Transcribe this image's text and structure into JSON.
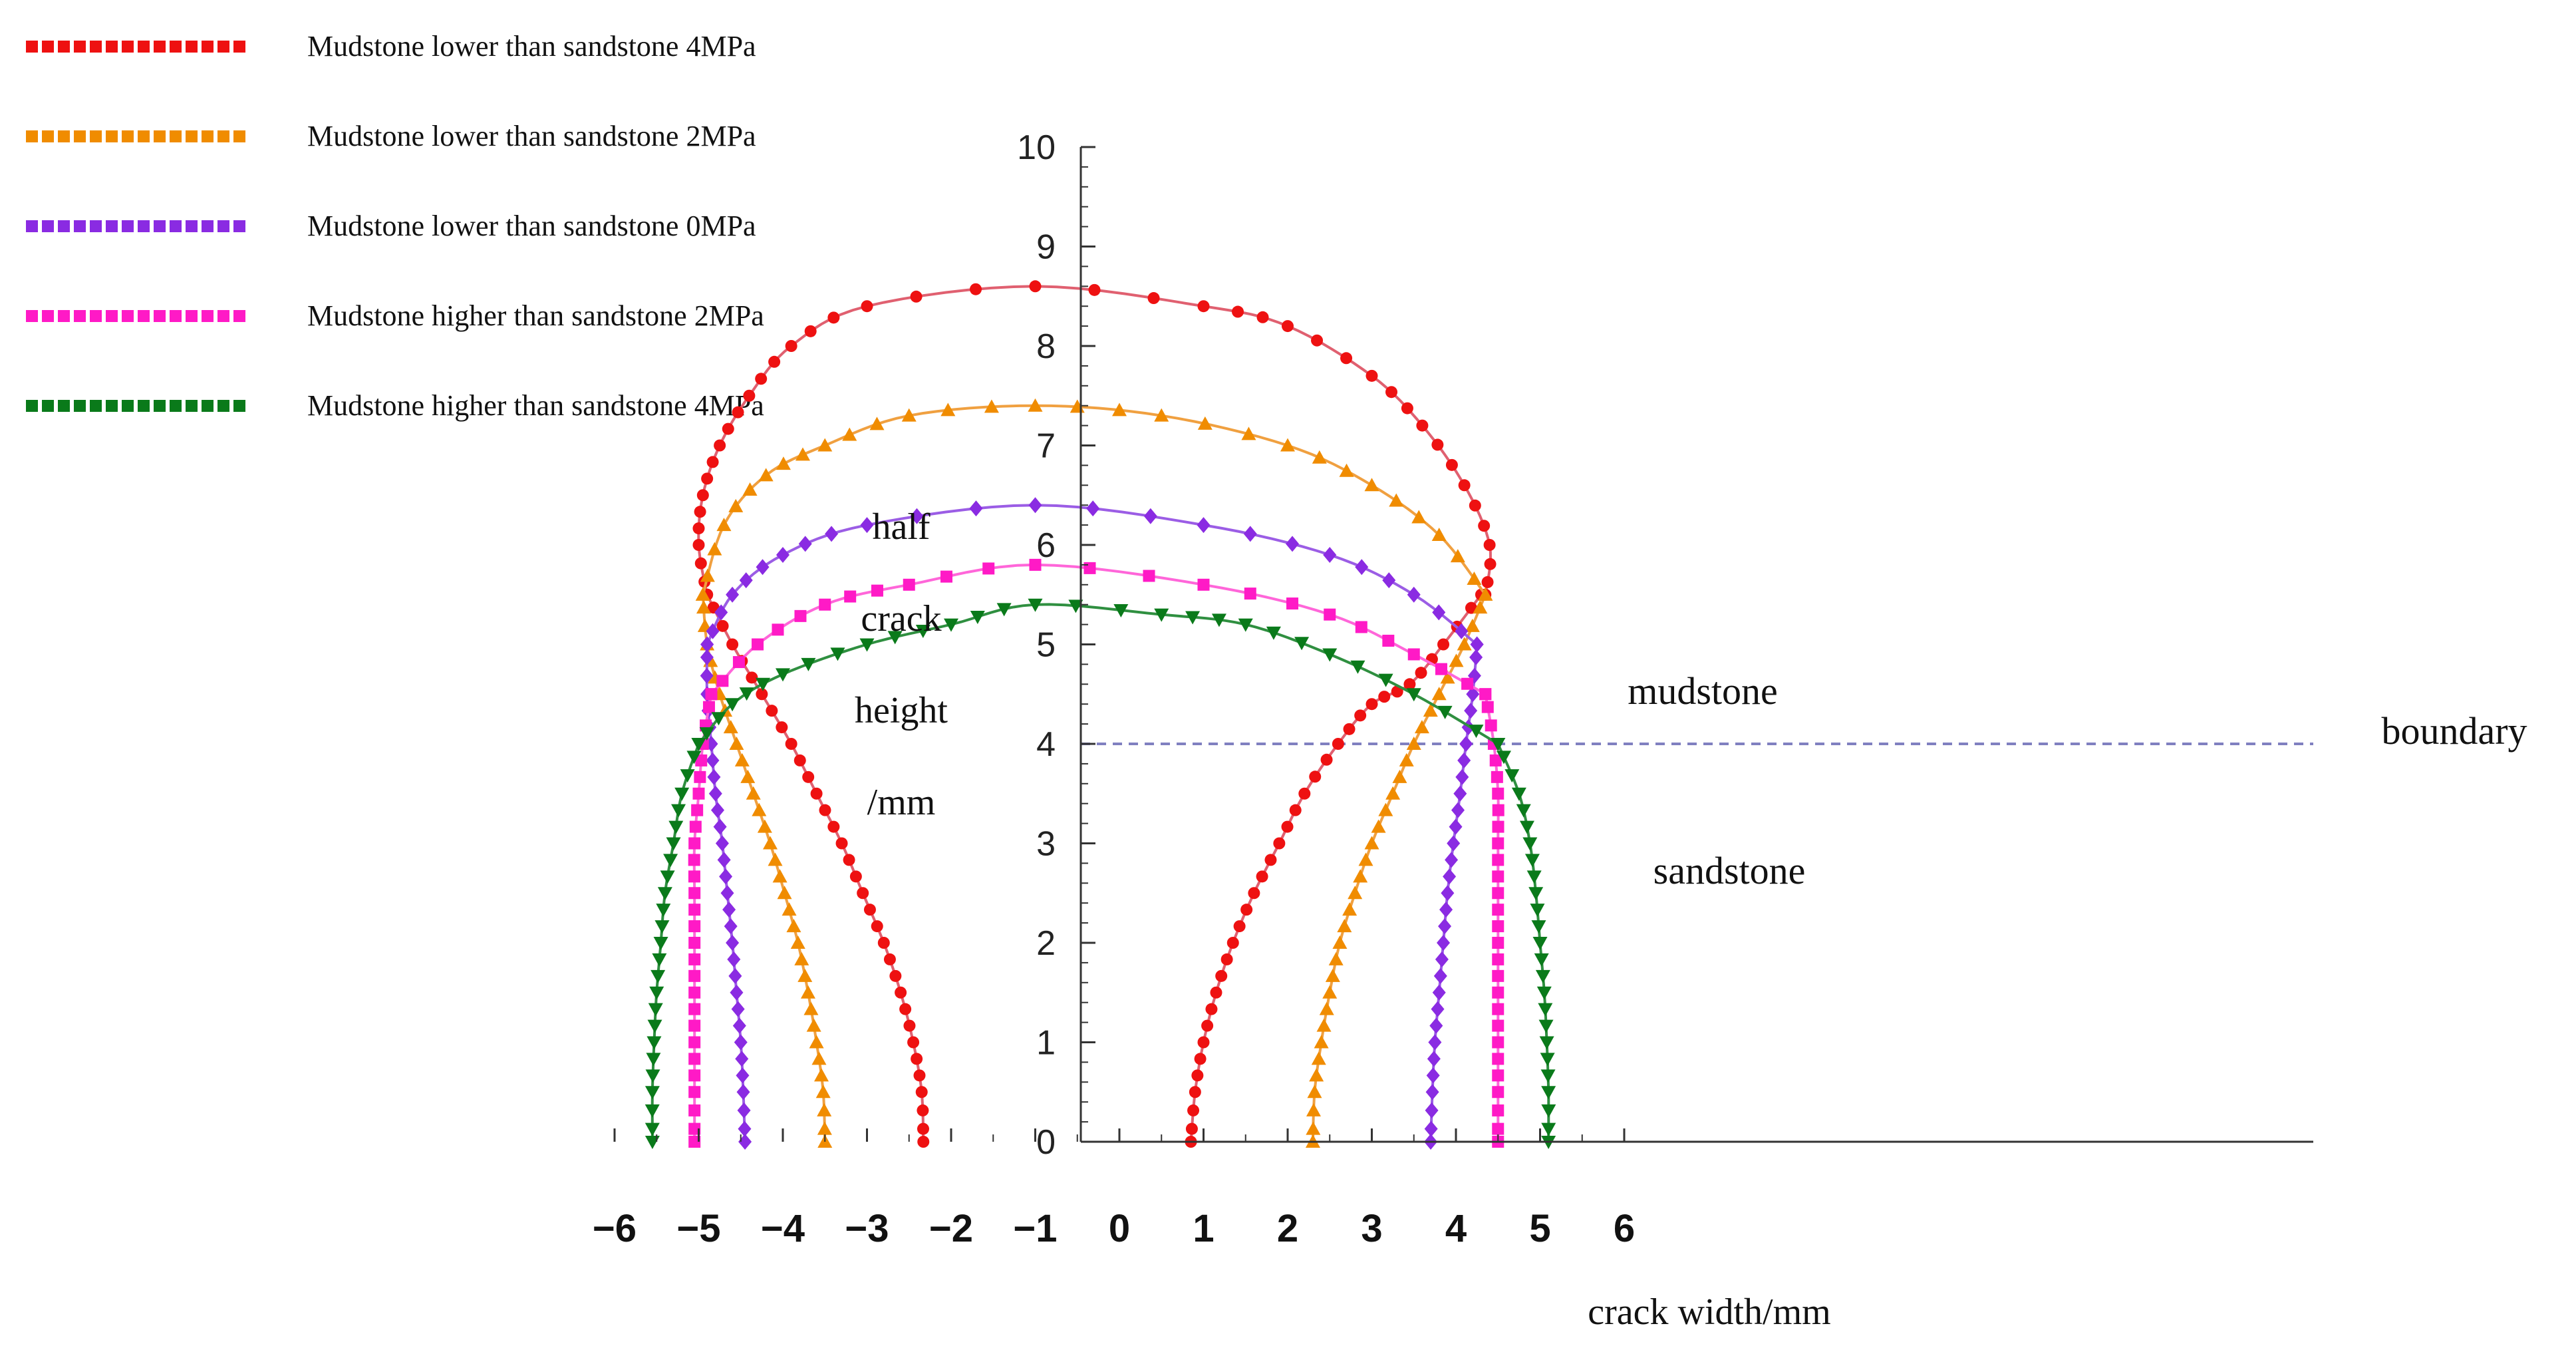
{
  "chart_data": {
    "type": "line",
    "title": "",
    "xlabel": "crack width/mm",
    "ylabel_lines": [
      "half",
      "crack",
      "height",
      "/mm"
    ],
    "xlim": [
      -6,
      6
    ],
    "ylim": [
      0,
      10
    ],
    "x_ticks": [
      "−6",
      "−5",
      "−4",
      "−3",
      "−2",
      "−1",
      "0",
      "1",
      "2",
      "3",
      "4",
      "5",
      "6"
    ],
    "x_tick_values": [
      -6,
      -5,
      -4,
      -3,
      -2,
      -1,
      0,
      1,
      2,
      3,
      4,
      5,
      6
    ],
    "y_ticks": [
      "0",
      "1",
      "2",
      "3",
      "4",
      "5",
      "6",
      "7",
      "8",
      "9",
      "10"
    ],
    "y_tick_values": [
      0,
      1,
      2,
      3,
      4,
      5,
      6,
      7,
      8,
      9,
      10
    ],
    "legend_placement": "top-left",
    "annotations": {
      "mudstone": "mudstone",
      "sandstone": "sandstone",
      "boundary": "boundary"
    },
    "boundary": {
      "y": 4,
      "color": "#8080c0"
    },
    "series": [
      {
        "name": "Mudstone lower than sandstone 4MPa",
        "color": "#ee1111",
        "line_color": "#e06070",
        "marker": "circle",
        "left_sand": [
          [
            -2.33,
            0
          ],
          [
            -2.35,
            0.5
          ],
          [
            -2.45,
            1.0
          ],
          [
            -2.6,
            1.5
          ],
          [
            -2.8,
            2.0
          ],
          [
            -3.05,
            2.5
          ],
          [
            -3.3,
            3.0
          ],
          [
            -3.6,
            3.5
          ],
          [
            -3.9,
            4.0
          ],
          [
            -4.25,
            4.5
          ],
          [
            -4.6,
            5.0
          ],
          [
            -4.9,
            5.5
          ]
        ],
        "right_sand": [
          [
            0.85,
            0
          ],
          [
            0.9,
            0.5
          ],
          [
            1.0,
            1.0
          ],
          [
            1.15,
            1.5
          ],
          [
            1.35,
            2.0
          ],
          [
            1.6,
            2.5
          ],
          [
            1.9,
            3.0
          ],
          [
            2.2,
            3.5
          ],
          [
            2.6,
            4.0
          ],
          [
            3.0,
            4.4
          ],
          [
            3.45,
            4.6
          ],
          [
            3.85,
            5.0
          ],
          [
            4.3,
            5.5
          ]
        ],
        "mud": [
          [
            -4.9,
            5.5
          ],
          [
            -5.0,
            6.0
          ],
          [
            -4.95,
            6.5
          ],
          [
            -4.75,
            7.0
          ],
          [
            -4.4,
            7.5
          ],
          [
            -3.9,
            8.0
          ],
          [
            -3.0,
            8.4
          ],
          [
            -1.0,
            8.6
          ],
          [
            1.0,
            8.4
          ],
          [
            2.0,
            8.2
          ],
          [
            3.0,
            7.7
          ],
          [
            3.6,
            7.2
          ],
          [
            4.1,
            6.6
          ],
          [
            4.4,
            6.0
          ],
          [
            4.35,
            5.5
          ]
        ]
      },
      {
        "name": "Mudstone lower than sandstone 2MPa",
        "color": "#f08c00",
        "line_color": "#f0a040",
        "marker": "triangle-up",
        "left_sand": [
          [
            -3.5,
            0
          ],
          [
            -3.52,
            0.5
          ],
          [
            -3.6,
            1.0
          ],
          [
            -3.7,
            1.5
          ],
          [
            -3.82,
            2.0
          ],
          [
            -3.98,
            2.5
          ],
          [
            -4.15,
            3.0
          ],
          [
            -4.35,
            3.5
          ],
          [
            -4.55,
            4.0
          ],
          [
            -4.75,
            4.5
          ],
          [
            -4.9,
            5.0
          ],
          [
            -4.95,
            5.5
          ]
        ],
        "right_sand": [
          [
            2.3,
            0
          ],
          [
            2.32,
            0.5
          ],
          [
            2.4,
            1.0
          ],
          [
            2.5,
            1.5
          ],
          [
            2.62,
            2.0
          ],
          [
            2.8,
            2.5
          ],
          [
            3.0,
            3.0
          ],
          [
            3.25,
            3.5
          ],
          [
            3.5,
            4.0
          ],
          [
            3.8,
            4.5
          ],
          [
            4.1,
            5.0
          ],
          [
            4.35,
            5.5
          ]
        ],
        "mud": [
          [
            -4.95,
            5.5
          ],
          [
            -4.7,
            6.2
          ],
          [
            -4.2,
            6.7
          ],
          [
            -3.5,
            7.0
          ],
          [
            -2.5,
            7.3
          ],
          [
            -1.0,
            7.4
          ],
          [
            0.5,
            7.3
          ],
          [
            2.0,
            7.0
          ],
          [
            3.0,
            6.6
          ],
          [
            3.8,
            6.1
          ],
          [
            4.35,
            5.5
          ]
        ]
      },
      {
        "name": "Mudstone lower than sandstone 0MPa",
        "color": "#8a2be2",
        "line_color": "#9b5de5",
        "marker": "diamond",
        "left_sand": [
          [
            -4.45,
            0
          ],
          [
            -4.47,
            0.5
          ],
          [
            -4.5,
            1.0
          ],
          [
            -4.55,
            1.5
          ],
          [
            -4.6,
            2.0
          ],
          [
            -4.66,
            2.5
          ],
          [
            -4.72,
            3.0
          ],
          [
            -4.8,
            3.5
          ],
          [
            -4.85,
            4.0
          ],
          [
            -4.9,
            4.5
          ],
          [
            -4.9,
            5.0
          ]
        ],
        "right_sand": [
          [
            3.7,
            0
          ],
          [
            3.72,
            0.5
          ],
          [
            3.75,
            1.0
          ],
          [
            3.8,
            1.5
          ],
          [
            3.85,
            2.0
          ],
          [
            3.9,
            2.5
          ],
          [
            3.97,
            3.0
          ],
          [
            4.05,
            3.5
          ],
          [
            4.12,
            4.0
          ],
          [
            4.2,
            4.5
          ],
          [
            4.25,
            5.0
          ]
        ],
        "mud": [
          [
            -4.9,
            5.0
          ],
          [
            -4.6,
            5.5
          ],
          [
            -4.0,
            5.9
          ],
          [
            -3.0,
            6.2
          ],
          [
            -1.0,
            6.4
          ],
          [
            1.0,
            6.2
          ],
          [
            2.5,
            5.9
          ],
          [
            3.5,
            5.5
          ],
          [
            4.25,
            5.0
          ]
        ]
      },
      {
        "name": "Mudstone higher than sandstone 2MPa",
        "color": "#ff1ac6",
        "line_color": "#ff66d9",
        "marker": "square",
        "left_sand": [
          [
            -5.05,
            0
          ],
          [
            -5.05,
            0.5
          ],
          [
            -5.05,
            1.0
          ],
          [
            -5.05,
            1.5
          ],
          [
            -5.05,
            2.0
          ],
          [
            -5.05,
            2.5
          ],
          [
            -5.05,
            3.0
          ],
          [
            -5.0,
            3.5
          ],
          [
            -4.95,
            4.0
          ],
          [
            -4.85,
            4.5
          ]
        ],
        "right_sand": [
          [
            4.5,
            0
          ],
          [
            4.5,
            0.5
          ],
          [
            4.5,
            1.0
          ],
          [
            4.5,
            1.5
          ],
          [
            4.5,
            2.0
          ],
          [
            4.5,
            2.5
          ],
          [
            4.5,
            3.0
          ],
          [
            4.5,
            3.5
          ],
          [
            4.45,
            4.0
          ],
          [
            4.35,
            4.5
          ]
        ],
        "mud": [
          [
            -4.85,
            4.5
          ],
          [
            -4.3,
            5.0
          ],
          [
            -3.5,
            5.4
          ],
          [
            -2.5,
            5.6
          ],
          [
            -1.0,
            5.8
          ],
          [
            1.0,
            5.6
          ],
          [
            2.5,
            5.3
          ],
          [
            3.5,
            4.9
          ],
          [
            4.35,
            4.5
          ]
        ]
      },
      {
        "name": "Mudstone higher than sandstone 4MPa",
        "color": "#0a7a1a",
        "line_color": "#2f8f40",
        "marker": "triangle-down",
        "left_sand": [
          [
            -5.55,
            0
          ],
          [
            -5.55,
            0.5
          ],
          [
            -5.53,
            1.0
          ],
          [
            -5.5,
            1.5
          ],
          [
            -5.45,
            2.0
          ],
          [
            -5.4,
            2.5
          ],
          [
            -5.3,
            3.0
          ],
          [
            -5.2,
            3.5
          ],
          [
            -5.0,
            4.0
          ]
        ],
        "right_sand": [
          [
            5.1,
            0
          ],
          [
            5.1,
            0.5
          ],
          [
            5.08,
            1.0
          ],
          [
            5.05,
            1.5
          ],
          [
            5.0,
            2.0
          ],
          [
            4.95,
            2.5
          ],
          [
            4.88,
            3.0
          ],
          [
            4.75,
            3.5
          ],
          [
            4.5,
            4.0
          ]
        ],
        "mud": [
          [
            -5.0,
            4.0
          ],
          [
            -4.6,
            4.4
          ],
          [
            -4.0,
            4.7
          ],
          [
            -3.0,
            5.0
          ],
          [
            -2.0,
            5.2
          ],
          [
            -1.0,
            5.4
          ],
          [
            0.5,
            5.3
          ],
          [
            1.5,
            5.2
          ],
          [
            2.5,
            4.9
          ],
          [
            3.5,
            4.5
          ],
          [
            4.5,
            4.0
          ]
        ]
      }
    ]
  }
}
